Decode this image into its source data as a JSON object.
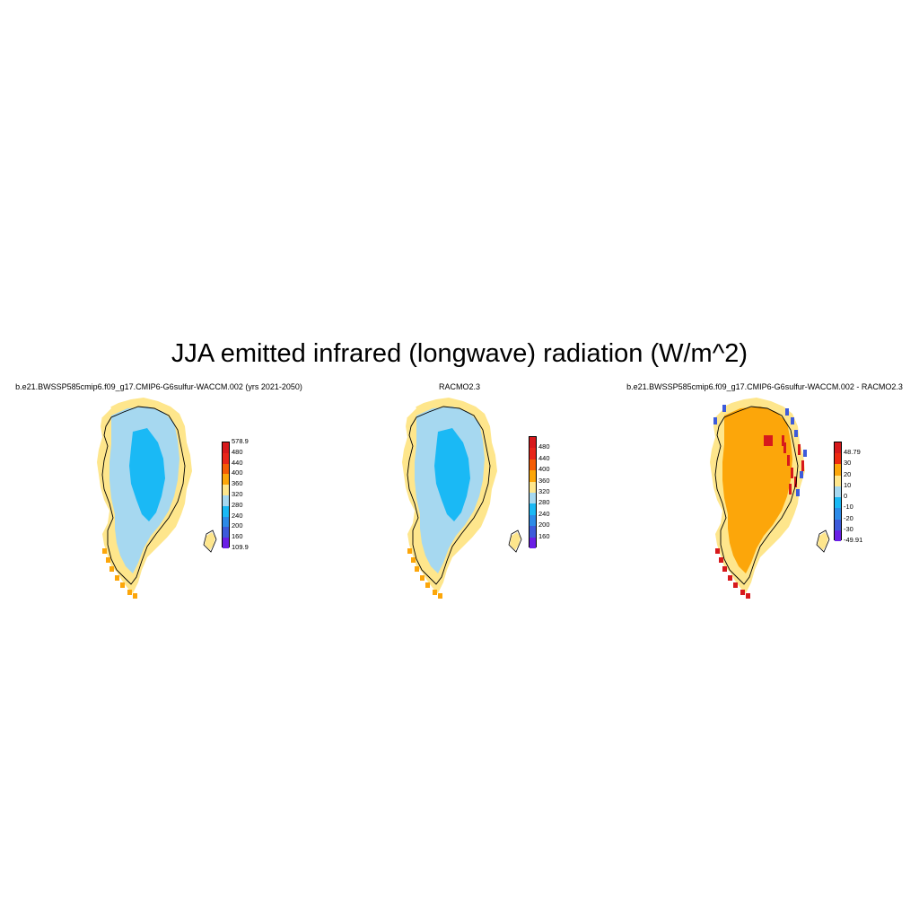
{
  "figure": {
    "title": "JJA emitted infrared (longwave) radiation (W/m^2)"
  },
  "panels": [
    {
      "id": "model",
      "title": "b.e21.BWSSP585cmip6.f09_g17.CMIP6-G6sulfur-WACCM.002 (yrs 2021-2050)",
      "colorbar": {
        "labels": [
          "578.9",
          "480",
          "440",
          "400",
          "360",
          "320",
          "280",
          "240",
          "200",
          "160",
          "109.9"
        ],
        "colors": [
          "#d7191c",
          "#e8261a",
          "#f45d05",
          "#fca60a",
          "#fee68c",
          "#a6d8f0",
          "#1ab9f5",
          "#2d8be8",
          "#3d5bdb",
          "#6a1fe6"
        ]
      },
      "map_fills": {
        "interior": "#1ab9f5",
        "slope": "#a6d8f0",
        "margin": "#fee68c",
        "edge": "#fca60a"
      }
    },
    {
      "id": "racmo",
      "title": "RACMO2.3",
      "colorbar": {
        "labels": [
          "480",
          "440",
          "400",
          "360",
          "320",
          "280",
          "240",
          "200",
          "160"
        ],
        "colors": [
          "#d7191c",
          "#e8261a",
          "#f45d05",
          "#fca60a",
          "#fee68c",
          "#a6d8f0",
          "#1ab9f5",
          "#2d8be8",
          "#3d5bdb",
          "#6a1fe6"
        ]
      },
      "map_fills": {
        "interior": "#1ab9f5",
        "slope": "#a6d8f0",
        "margin": "#fee68c",
        "edge": "#fca60a"
      }
    },
    {
      "id": "difference",
      "title": "b.e21.BWSSP585cmip6.f09_g17.CMIP6-G6sulfur-WACCM.002 - RACMO2.3",
      "colorbar": {
        "labels": [
          "48.79",
          "30",
          "20",
          "10",
          "0",
          "-10",
          "-20",
          "-30",
          "-49.91"
        ],
        "colors": [
          "#d7191c",
          "#ee2a10",
          "#fca60a",
          "#fee68c",
          "#a6d8f0",
          "#1ab9f5",
          "#2d8be8",
          "#3d5bdb",
          "#6a1fe6"
        ]
      },
      "map_fills": {
        "interior": "#fca60a",
        "slope": "#fca60a",
        "margin": "#fee68c",
        "edge": "#d7191c",
        "streaks_warm": "#d7191c",
        "streaks_cool": "#3d5bdb"
      }
    }
  ]
}
